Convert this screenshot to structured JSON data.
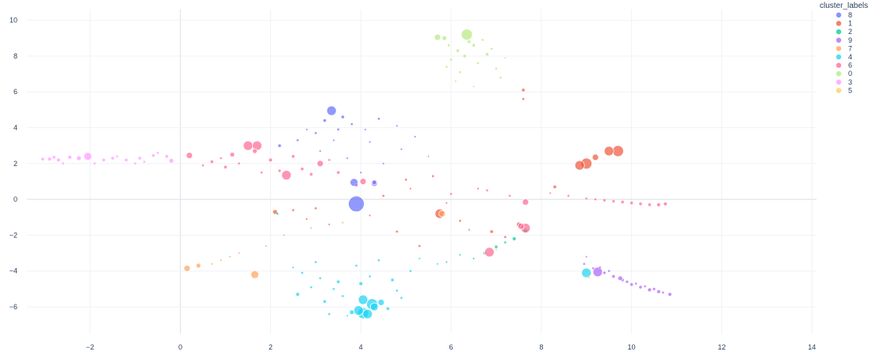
{
  "chart_data": {
    "type": "scatter",
    "title": "",
    "xlabel": "",
    "ylabel": "",
    "xlim": [
      -3.4,
      14.1
    ],
    "ylim": [
      -7.5,
      10.6
    ],
    "x_ticks": [
      -2,
      0,
      2,
      4,
      6,
      8,
      10,
      12,
      14
    ],
    "y_ticks": [
      -6,
      -4,
      -2,
      0,
      2,
      4,
      6,
      8,
      10
    ],
    "grid": true,
    "legend": {
      "title": "cluster_labels",
      "position": "top-right"
    },
    "series": [
      {
        "name": "8",
        "color": "#636efa",
        "points": [
          [
            3.35,
            4.95,
            6
          ],
          [
            3.9,
            -0.25,
            10
          ],
          [
            3.85,
            0.95,
            5
          ],
          [
            4.3,
            0.9,
            4
          ],
          [
            3.2,
            4.4,
            2
          ],
          [
            3.6,
            4.6,
            2
          ],
          [
            3.0,
            3.7,
            1.5
          ],
          [
            2.6,
            3.3,
            1.5
          ],
          [
            3.8,
            4.2,
            1.5
          ],
          [
            4.4,
            4.5,
            1.5
          ],
          [
            3.5,
            3.9,
            1.5
          ],
          [
            2.2,
            3.0,
            2
          ],
          [
            4.8,
            4.1,
            1.2
          ],
          [
            5.2,
            3.5,
            1.2
          ],
          [
            4.2,
            3.2,
            1.2
          ],
          [
            3.1,
            2.7,
            1.2
          ],
          [
            4.9,
            2.8,
            1.2
          ],
          [
            3.7,
            2.3,
            1.2
          ],
          [
            4.5,
            2.0,
            1.2
          ],
          [
            4.0,
            1.5,
            1.2
          ],
          [
            5.5,
            2.4,
            1
          ],
          [
            2.8,
            3.9,
            1.2
          ],
          [
            3.4,
            3.3,
            1.2
          ],
          [
            4.1,
            3.9,
            1.2
          ]
        ]
      },
      {
        "name": "1",
        "color": "#ef553b",
        "points": [
          [
            9.7,
            2.7,
            7
          ],
          [
            9.5,
            2.7,
            6
          ],
          [
            9.0,
            2.0,
            7
          ],
          [
            8.85,
            1.9,
            6
          ],
          [
            9.2,
            2.35,
            4
          ],
          [
            5.75,
            -0.8,
            6
          ],
          [
            2.1,
            -0.7,
            3
          ],
          [
            7.6,
            6.1,
            2
          ],
          [
            7.6,
            5.6,
            1.5
          ],
          [
            8.3,
            0.7,
            2
          ],
          [
            7.5,
            -1.4,
            3
          ],
          [
            6.9,
            -1.8,
            2
          ],
          [
            5.0,
            1.1,
            1.5
          ],
          [
            5.6,
            1.3,
            1.5
          ],
          [
            4.5,
            0.2,
            1.5
          ],
          [
            3.0,
            -0.5,
            1.5
          ],
          [
            2.5,
            -0.6,
            1.5
          ],
          [
            6.2,
            -1.2,
            1.5
          ],
          [
            4.8,
            -1.8,
            1.5
          ],
          [
            5.3,
            -2.6,
            1.5
          ],
          [
            3.3,
            -1.4,
            1.2
          ],
          [
            6.6,
            0.6,
            1.2
          ],
          [
            7.2,
            -2.1,
            1.5
          ],
          [
            5.9,
            -0.2,
            1.2
          ],
          [
            4.2,
            -0.9,
            1.2
          ],
          [
            6.4,
            -1.7,
            1.2
          ],
          [
            2.8,
            -1.1,
            1.2
          ],
          [
            5.1,
            0.6,
            1.2
          ]
        ]
      },
      {
        "name": "2",
        "color": "#00cc96",
        "points": [
          [
            7.65,
            -1.75,
            3
          ],
          [
            7.4,
            -2.2,
            2.5
          ],
          [
            7.0,
            -2.65,
            2
          ],
          [
            6.75,
            -3.0,
            2
          ],
          [
            2.15,
            -0.8,
            1.5
          ],
          [
            6.5,
            -3.3,
            1.2
          ],
          [
            5.9,
            -3.5,
            1.2
          ],
          [
            7.2,
            -2.4,
            1.5
          ],
          [
            6.2,
            -3.1,
            1.2
          ]
        ]
      },
      {
        "name": "9",
        "color": "#ab63fa",
        "points": [
          [
            9.25,
            -4.05,
            6
          ],
          [
            10.85,
            -5.3,
            2.5
          ],
          [
            10.6,
            -5.15,
            2.5
          ],
          [
            10.4,
            -5.05,
            2.5
          ],
          [
            10.2,
            -4.9,
            2
          ],
          [
            10.0,
            -4.75,
            2
          ],
          [
            9.8,
            -4.5,
            2
          ],
          [
            9.6,
            -4.3,
            2
          ],
          [
            9.4,
            -4.1,
            1.8
          ],
          [
            9.15,
            -3.85,
            1.5
          ],
          [
            8.95,
            -3.6,
            1.5
          ],
          [
            9.75,
            -4.4,
            3
          ],
          [
            10.5,
            -5.0,
            1.8
          ],
          [
            9.9,
            -4.6,
            1.8
          ],
          [
            10.7,
            -5.2,
            1.5
          ],
          [
            9.5,
            -4.0,
            1.5
          ],
          [
            10.1,
            -4.7,
            1.5
          ],
          [
            9.3,
            -3.8,
            1.5
          ],
          [
            9.0,
            -3.2,
            1.2
          ],
          [
            10.3,
            -4.85,
            1.5
          ],
          [
            4.3,
            0.95,
            3
          ],
          [
            3.9,
            0.8,
            2
          ]
        ]
      },
      {
        "name": "7",
        "color": "#ffa15a",
        "points": [
          [
            0.15,
            -3.85,
            4
          ],
          [
            0.4,
            -3.7,
            3
          ],
          [
            1.65,
            -4.2,
            5
          ],
          [
            5.8,
            -0.8,
            4
          ],
          [
            1.3,
            -3.0,
            1.2
          ],
          [
            0.9,
            -3.4,
            1.2
          ],
          [
            1.9,
            -2.6,
            1.2
          ],
          [
            2.3,
            -2.0,
            1.2
          ],
          [
            2.9,
            -1.6,
            1.2
          ],
          [
            3.6,
            -1.3,
            1.2
          ],
          [
            0.7,
            -3.6,
            1.2
          ],
          [
            1.1,
            -3.2,
            1.2
          ]
        ]
      },
      {
        "name": "4",
        "color": "#19d3f3",
        "points": [
          [
            4.05,
            -6.35,
            7
          ],
          [
            4.15,
            -6.4,
            6
          ],
          [
            3.95,
            -6.2,
            6
          ],
          [
            4.25,
            -5.85,
            7
          ],
          [
            4.05,
            -5.6,
            6
          ],
          [
            4.3,
            -6.0,
            5
          ],
          [
            9.0,
            -4.1,
            6
          ],
          [
            4.45,
            -5.75,
            4
          ],
          [
            3.8,
            -6.3,
            3
          ],
          [
            2.6,
            -5.3,
            2.5
          ],
          [
            3.2,
            -5.7,
            2
          ],
          [
            3.5,
            -4.6,
            2
          ],
          [
            4.7,
            -4.5,
            2
          ],
          [
            4.0,
            -4.7,
            2.5
          ],
          [
            2.9,
            -4.9,
            1.5
          ],
          [
            3.3,
            -6.4,
            1.5
          ],
          [
            3.6,
            -5.4,
            1.5
          ],
          [
            4.8,
            -5.1,
            1.5
          ],
          [
            2.7,
            -4.1,
            1.5
          ],
          [
            3.9,
            -3.7,
            1.5
          ],
          [
            4.4,
            -3.4,
            1.5
          ],
          [
            5.1,
            -4.0,
            1.5
          ],
          [
            3.0,
            -3.5,
            1.5
          ],
          [
            4.6,
            -6.1,
            2
          ],
          [
            5.3,
            -3.3,
            1.2
          ],
          [
            5.7,
            -3.6,
            1.2
          ],
          [
            4.2,
            -4.3,
            1.5
          ],
          [
            3.4,
            -5.0,
            1.5
          ],
          [
            3.7,
            -6.5,
            1.2
          ],
          [
            2.5,
            -3.8,
            1.2
          ],
          [
            4.9,
            -5.5,
            1.5
          ],
          [
            3.1,
            -4.4,
            1.5
          ]
        ]
      },
      {
        "name": "6",
        "color": "#ff6692",
        "points": [
          [
            1.5,
            3.0,
            6
          ],
          [
            1.7,
            3.0,
            6
          ],
          [
            2.35,
            1.35,
            6
          ],
          [
            3.1,
            2.0,
            4
          ],
          [
            0.2,
            2.45,
            4
          ],
          [
            1.15,
            2.5,
            3
          ],
          [
            1.65,
            2.7,
            3
          ],
          [
            4.05,
            1.0,
            4
          ],
          [
            6.85,
            -2.95,
            6
          ],
          [
            7.65,
            -1.6,
            6
          ],
          [
            7.55,
            -1.5,
            4
          ],
          [
            7.65,
            -0.15,
            4
          ],
          [
            10.75,
            -0.25,
            2.5
          ],
          [
            10.6,
            -0.3,
            2.5
          ],
          [
            10.4,
            -0.3,
            2
          ],
          [
            10.2,
            -0.25,
            2
          ],
          [
            10.0,
            -0.2,
            2
          ],
          [
            9.8,
            -0.15,
            2
          ],
          [
            9.6,
            -0.1,
            1.8
          ],
          [
            9.4,
            -0.05,
            1.8
          ],
          [
            9.2,
            0.0,
            1.5
          ],
          [
            9.0,
            0.05,
            1.5
          ],
          [
            8.6,
            0.2,
            1.5
          ],
          [
            8.2,
            0.35,
            1.2
          ],
          [
            0.7,
            2.1,
            2
          ],
          [
            1.0,
            1.8,
            2
          ],
          [
            2.0,
            2.2,
            2.5
          ],
          [
            2.7,
            1.7,
            2
          ],
          [
            3.5,
            1.5,
            2
          ],
          [
            0.5,
            1.9,
            1.5
          ],
          [
            1.8,
            1.5,
            1.5
          ],
          [
            2.5,
            2.4,
            2
          ],
          [
            3.3,
            2.2,
            1.5
          ],
          [
            0.9,
            2.3,
            1.5
          ],
          [
            2.9,
            1.4,
            2
          ],
          [
            1.3,
            2.0,
            1.5
          ],
          [
            2.2,
            1.6,
            1.8
          ],
          [
            6.0,
            0.3,
            1.5
          ],
          [
            6.8,
            0.5,
            1.5
          ],
          [
            7.3,
            0.2,
            1.5
          ]
        ]
      },
      {
        "name": "0",
        "color": "#b6e880",
        "points": [
          [
            6.35,
            9.2,
            7
          ],
          [
            5.7,
            9.05,
            4
          ],
          [
            5.85,
            9.0,
            3
          ],
          [
            6.15,
            8.3,
            2
          ],
          [
            6.5,
            8.6,
            2
          ],
          [
            6.3,
            8.0,
            2
          ],
          [
            6.8,
            8.1,
            2
          ],
          [
            6.0,
            7.8,
            1.5
          ],
          [
            6.6,
            7.6,
            1.5
          ],
          [
            7.0,
            7.3,
            1.5
          ],
          [
            6.2,
            7.1,
            1.5
          ],
          [
            7.1,
            6.8,
            1.5
          ],
          [
            6.5,
            6.3,
            1.2
          ],
          [
            5.9,
            7.4,
            1.5
          ],
          [
            6.9,
            8.4,
            1.5
          ],
          [
            6.4,
            8.8,
            2
          ],
          [
            6.7,
            8.9,
            1.5
          ],
          [
            5.95,
            8.6,
            1.5
          ],
          [
            7.2,
            7.9,
            1.2
          ],
          [
            6.1,
            6.6,
            1.2
          ]
        ]
      },
      {
        "name": "3",
        "color": "#ff97ff",
        "points": [
          [
            -2.05,
            2.4,
            5
          ],
          [
            -2.25,
            2.3,
            3
          ],
          [
            -2.45,
            2.35,
            2.5
          ],
          [
            -2.7,
            2.2,
            2.5
          ],
          [
            -2.9,
            2.25,
            2.5
          ],
          [
            -3.05,
            2.25,
            2
          ],
          [
            -1.7,
            2.2,
            2
          ],
          [
            -1.5,
            2.3,
            2
          ],
          [
            -1.2,
            2.2,
            2
          ],
          [
            -0.9,
            2.3,
            2
          ],
          [
            -0.6,
            2.45,
            2
          ],
          [
            -0.3,
            2.4,
            2
          ],
          [
            -0.2,
            2.15,
            3
          ],
          [
            -2.6,
            2.0,
            1.5
          ],
          [
            -1.9,
            2.0,
            1.5
          ],
          [
            -1.0,
            2.0,
            1.5
          ],
          [
            -0.5,
            2.6,
            1.5
          ],
          [
            -2.8,
            2.35,
            2
          ],
          [
            -1.4,
            2.4,
            1.5
          ],
          [
            -0.8,
            2.1,
            1.5
          ]
        ]
      },
      {
        "name": "5",
        "color": "#fecb52",
        "points": [
          [
            9.05,
            -4.35,
            1.5
          ],
          [
            7.0,
            -2.8,
            1.2
          ],
          [
            5.85,
            -0.85,
            1.5
          ]
        ]
      }
    ]
  }
}
